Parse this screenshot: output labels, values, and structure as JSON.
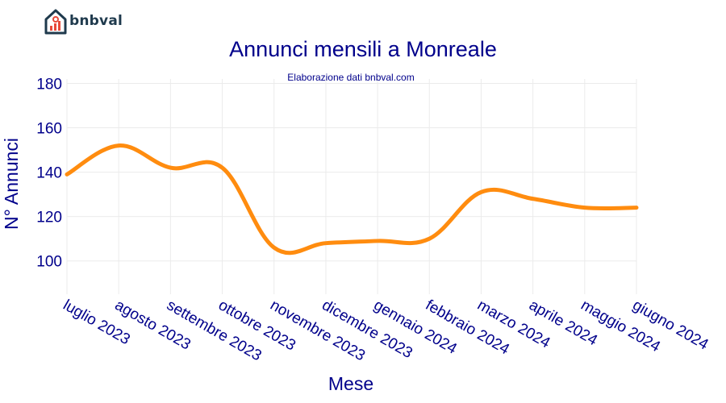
{
  "brand": {
    "name": "bnbval",
    "icon": "house-chart-icon"
  },
  "colors": {
    "line": "#FF8C0F",
    "text": "#00008B",
    "grid": "#ebebeb",
    "brand": "#1f3a4d",
    "brand_accent": "#e84a3a"
  },
  "chart_data": {
    "type": "line",
    "title": "Annunci mensili a Monreale",
    "subtitle": "Elaborazione dati bnbval.com",
    "xlabel": "Mese",
    "ylabel": "N° Annunci",
    "categories": [
      "luglio 2023",
      "agosto 2023",
      "settembre 2023",
      "ottobre 2023",
      "novembre 2023",
      "dicembre 2023",
      "gennaio 2024",
      "febbraio 2024",
      "marzo 2024",
      "aprile 2024",
      "maggio 2024",
      "giugno 2024"
    ],
    "series": [
      {
        "values": [
          139,
          152,
          142,
          142,
          106,
          108,
          109,
          110,
          131,
          128,
          124,
          124
        ]
      }
    ],
    "ylim": [
      85,
      182
    ],
    "yticks": [
      100,
      120,
      140,
      160,
      180
    ],
    "grid": true,
    "line_shape": "spline"
  }
}
